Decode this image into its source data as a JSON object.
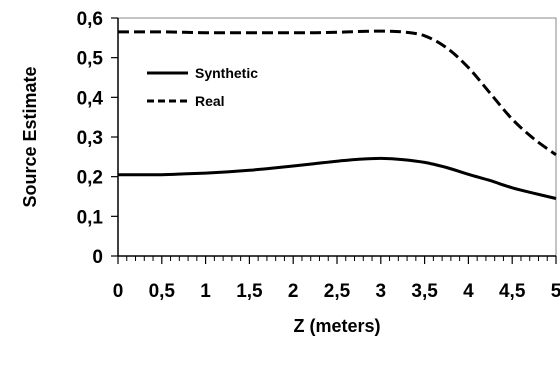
{
  "chart_data": {
    "type": "line",
    "xlabel": "Z (meters)",
    "ylabel": "Source Estimate",
    "xlim": [
      0,
      5
    ],
    "ylim": [
      0,
      0.6
    ],
    "x_ticks": [
      "0",
      "0,5",
      "1",
      "1,5",
      "2",
      "2,5",
      "3",
      "3,5",
      "4",
      "4,5",
      "5"
    ],
    "y_ticks": [
      "0",
      "0,1",
      "0,2",
      "0,3",
      "0,4",
      "0,5",
      "0,6"
    ],
    "grid": false,
    "legend_position": "top-left",
    "series": [
      {
        "name": "Synthetic",
        "style": "solid",
        "color": "#000000",
        "x": [
          0,
          0.25,
          0.5,
          0.75,
          1,
          1.25,
          1.5,
          1.75,
          2,
          2.25,
          2.5,
          2.75,
          3,
          3.25,
          3.5,
          3.75,
          4,
          4.25,
          4.5,
          4.75,
          5
        ],
        "y": [
          0.205,
          0.205,
          0.205,
          0.207,
          0.209,
          0.212,
          0.216,
          0.221,
          0.227,
          0.233,
          0.239,
          0.244,
          0.246,
          0.243,
          0.236,
          0.223,
          0.206,
          0.19,
          0.172,
          0.158,
          0.145
        ]
      },
      {
        "name": "Real",
        "style": "dashed",
        "color": "#000000",
        "x": [
          0,
          0.25,
          0.5,
          0.75,
          1,
          1.25,
          1.5,
          1.75,
          2,
          2.25,
          2.5,
          2.75,
          3,
          3.25,
          3.5,
          3.75,
          4,
          4.25,
          4.5,
          4.75,
          5
        ],
        "y": [
          0.565,
          0.565,
          0.565,
          0.564,
          0.563,
          0.563,
          0.563,
          0.563,
          0.563,
          0.563,
          0.564,
          0.566,
          0.567,
          0.565,
          0.555,
          0.525,
          0.475,
          0.41,
          0.345,
          0.295,
          0.255
        ]
      }
    ]
  }
}
